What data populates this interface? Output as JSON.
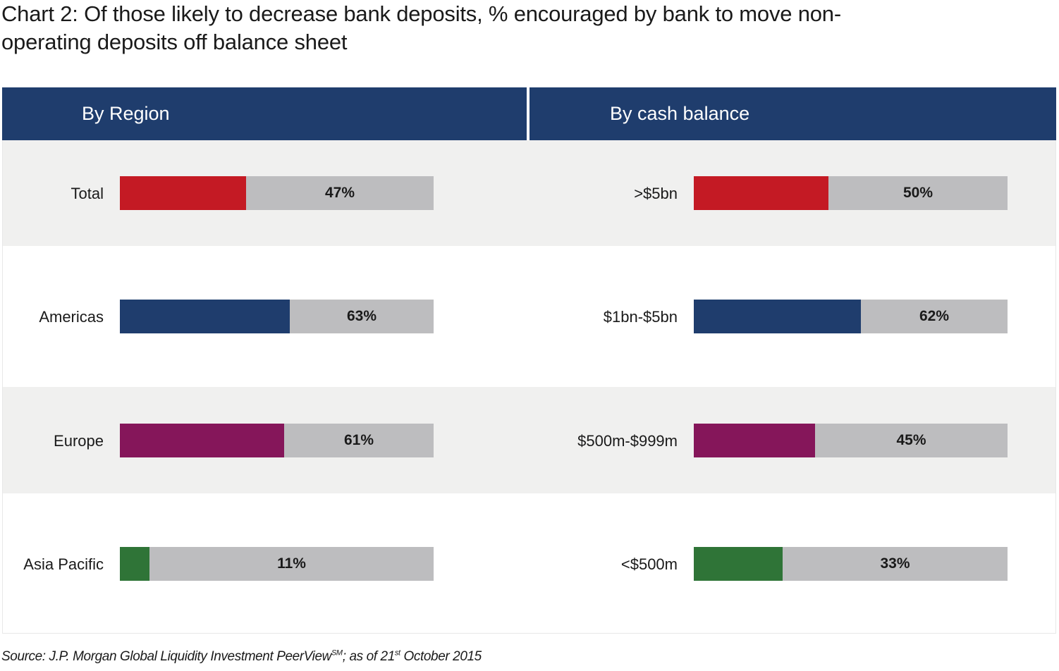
{
  "title": "Chart 2: Of those likely to decrease bank deposits, % encouraged by bank to move non-operating deposits off balance sheet",
  "title_lines": [
    "Chart 2: Of those likely to decrease bank deposits, % encouraged by bank to move non-",
    "operating deposits off balance sheet"
  ],
  "colors": {
    "header": "#1f3d6d",
    "track": "#bdbdbf",
    "band_shaded": "#f0f0ef",
    "row_colors": [
      "#c41a24",
      "#1f3d6d",
      "#85165a",
      "#2f7437"
    ]
  },
  "chart_data": [
    {
      "type": "bar",
      "title": "By Region",
      "categories": [
        "Total",
        "Americas",
        "Europe",
        "Asia Pacific"
      ],
      "values": [
        47,
        63,
        61,
        11
      ],
      "value_labels": [
        "47%",
        "63%",
        "61%",
        "11%"
      ],
      "ylim": [
        0,
        100
      ],
      "grid": false,
      "legend": "none"
    },
    {
      "type": "bar",
      "title": "By cash balance",
      "categories": [
        ">$5bn",
        "$1bn-$5bn",
        "$500m-$999m",
        "<$500m"
      ],
      "values": [
        50,
        62,
        45,
        33
      ],
      "value_labels": [
        "50%",
        "62%",
        "45%",
        "33%"
      ],
      "ylim": [
        0,
        100
      ],
      "grid": false,
      "legend": "none"
    }
  ],
  "source": {
    "prefix": "Source: J.P. Morgan Global Liquidity Investment PeerView",
    "superscript1": "SM",
    "middle": "; as of 21",
    "superscript2": "st",
    "suffix": " October 2015"
  }
}
